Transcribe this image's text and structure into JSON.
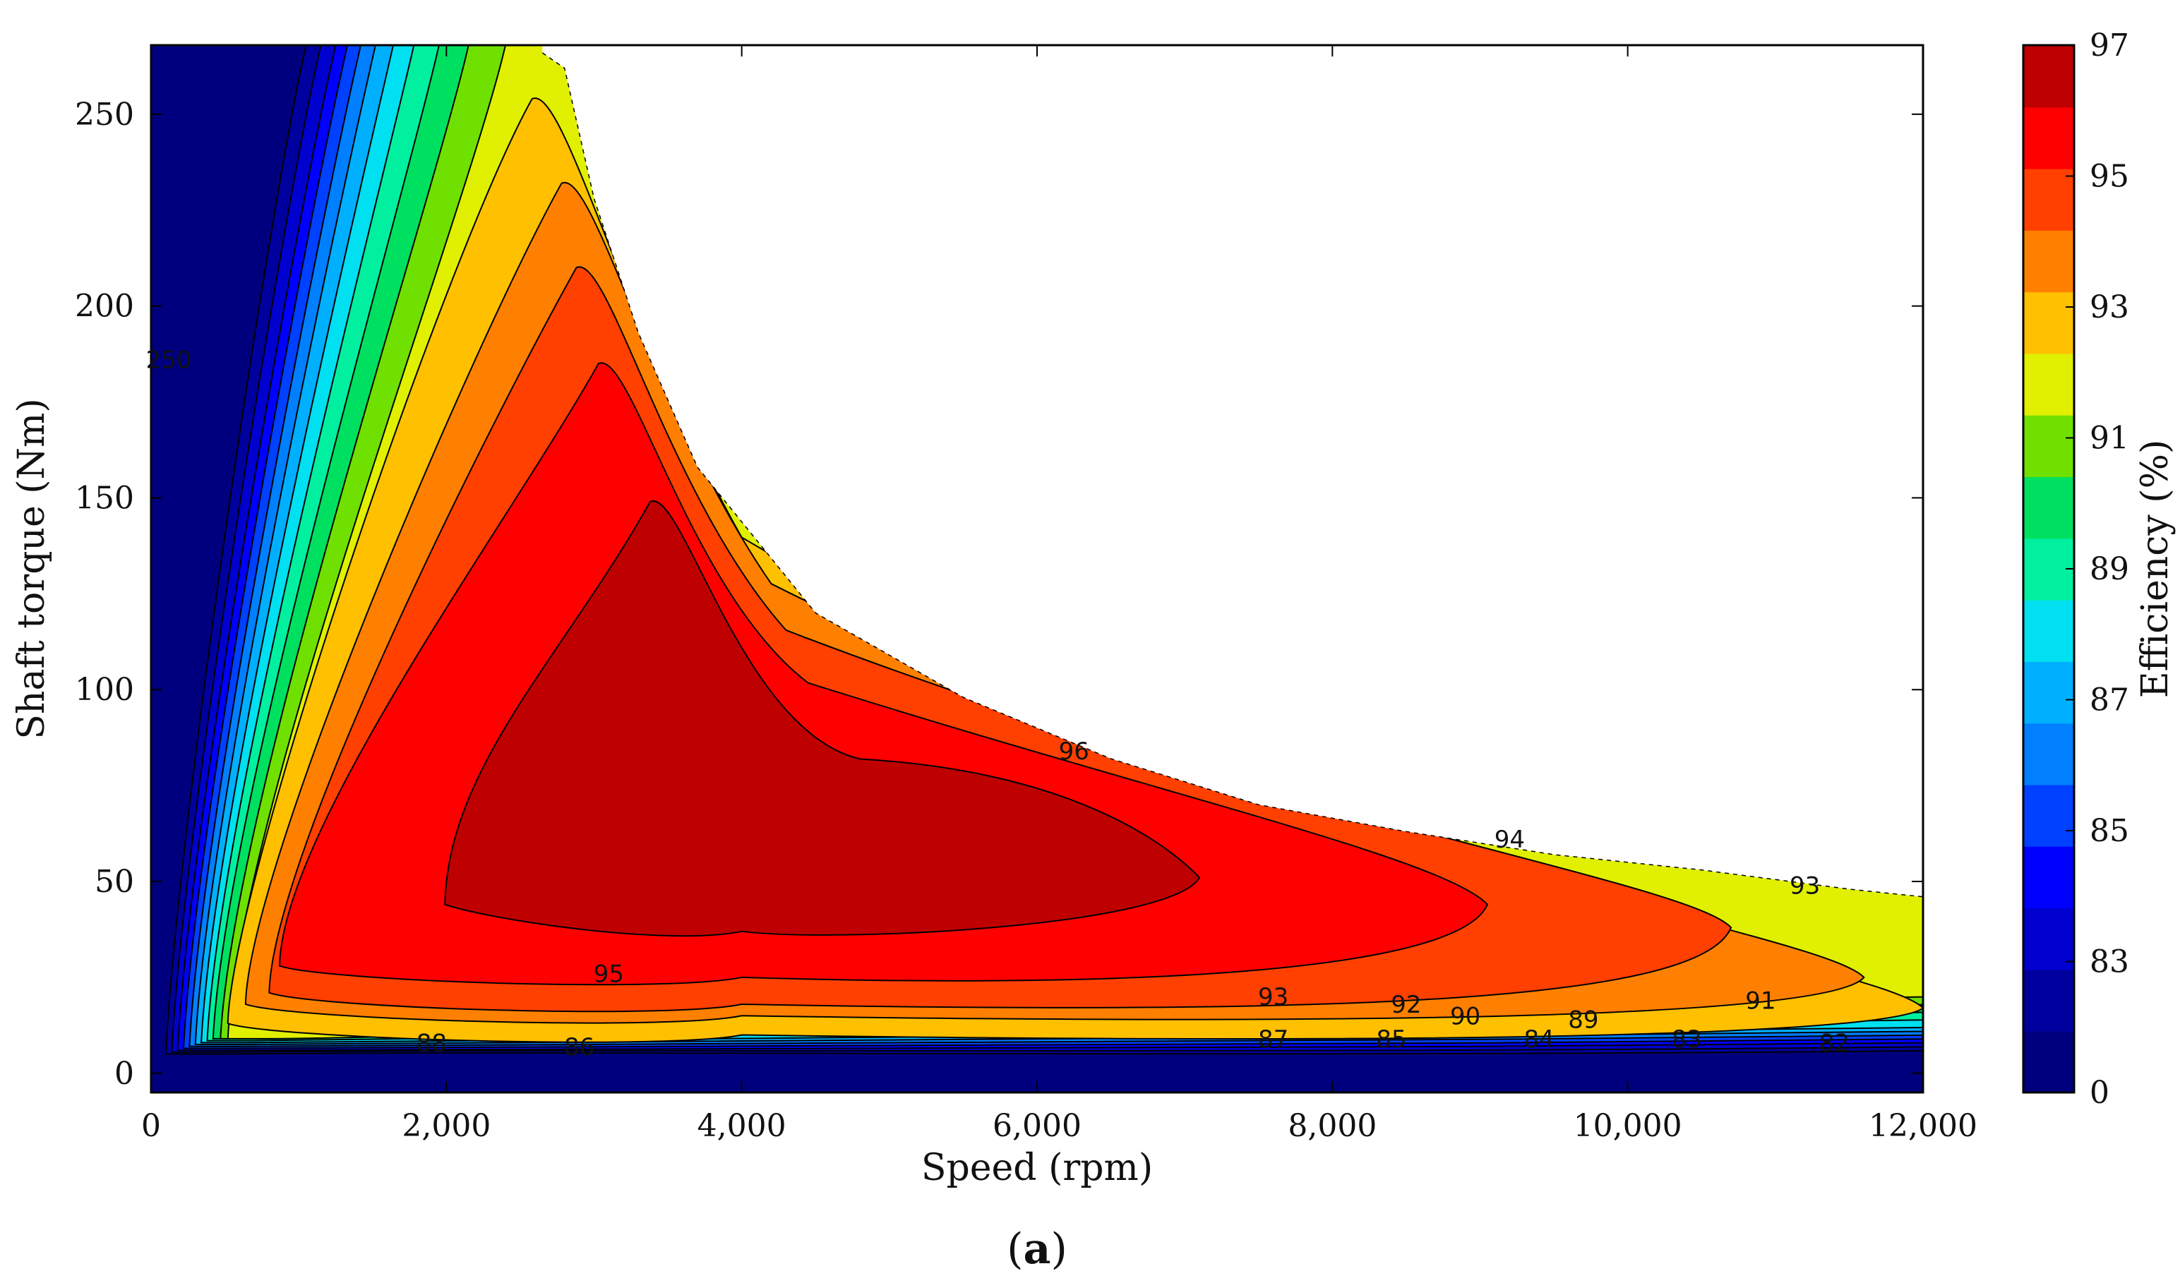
{
  "chart_data": {
    "type": "heatmap",
    "subtype": "filled-contour efficiency map",
    "title": "",
    "panel_label": {
      "open": "(",
      "letter": "a",
      "close": ")"
    },
    "xlabel": "Speed (rpm)",
    "ylabel": "Shaft torque (Nm)",
    "colorbar_label": "Efficiency (%)",
    "xlim": [
      0,
      12000
    ],
    "ylim": [
      -5,
      268
    ],
    "x_ticks": [
      0,
      2000,
      4000,
      6000,
      8000,
      10000,
      12000
    ],
    "x_tick_labels": [
      "0",
      "2,000",
      "4,000",
      "6,000",
      "8,000",
      "10,000",
      "12,000"
    ],
    "y_ticks": [
      0,
      50,
      100,
      150,
      200,
      250
    ],
    "y_tick_labels": [
      "0",
      "50",
      "100",
      "150",
      "200",
      "250"
    ],
    "colorbar_tick_labels": [
      "0",
      "83",
      "85",
      "87",
      "89",
      "91",
      "93",
      "95",
      "97"
    ],
    "efficiency_levels": [
      {
        "level": 0,
        "color": "#00007f"
      },
      {
        "level": 82,
        "color": "#00009f"
      },
      {
        "level": 83,
        "color": "#0000cf"
      },
      {
        "level": 84,
        "color": "#0000ff"
      },
      {
        "level": 85,
        "color": "#0040ff"
      },
      {
        "level": 86,
        "color": "#0080ff"
      },
      {
        "level": 87,
        "color": "#00b0ff"
      },
      {
        "level": 88,
        "color": "#00e0f0"
      },
      {
        "level": 89,
        "color": "#00f0a0"
      },
      {
        "level": 90,
        "color": "#00e060"
      },
      {
        "level": 91,
        "color": "#70e000"
      },
      {
        "level": 92,
        "color": "#e0f000"
      },
      {
        "level": 93,
        "color": "#ffc000"
      },
      {
        "level": 94,
        "color": "#ff8000"
      },
      {
        "level": 95,
        "color": "#ff4000"
      },
      {
        "level": 96,
        "color": "#ff0000"
      },
      {
        "level": 97,
        "color": "#bf0000"
      }
    ],
    "operating_envelope": {
      "max_torque_Nm": 266,
      "base_speed_rpm": 2650,
      "torque_limit_curve": [
        [
          2650,
          266
        ],
        [
          2800,
          262
        ],
        [
          3000,
          228
        ],
        [
          3300,
          193
        ],
        [
          3700,
          158
        ],
        [
          4500,
          120
        ],
        [
          5500,
          98
        ],
        [
          6500,
          82
        ],
        [
          7500,
          70
        ],
        [
          8500,
          63
        ],
        [
          9500,
          57
        ],
        [
          10500,
          53
        ],
        [
          11500,
          48
        ],
        [
          12000,
          46
        ]
      ]
    },
    "peak_efficiency_region": {
      "efficiency": 97,
      "speed_rpm": [
        2000,
        7100
      ],
      "torque_Nm": [
        37,
        149
      ]
    },
    "contour_labels": [
      {
        "text": "250",
        "x": 120,
        "y": 186
      },
      {
        "text": "96",
        "x": 6250,
        "y": 84
      },
      {
        "text": "94",
        "x": 9200,
        "y": 61
      },
      {
        "text": "93",
        "x": 11200,
        "y": 49
      },
      {
        "text": "95",
        "x": 3100,
        "y": 26
      },
      {
        "text": "93",
        "x": 7600,
        "y": 20
      },
      {
        "text": "92",
        "x": 8500,
        "y": 18
      },
      {
        "text": "90",
        "x": 8900,
        "y": 15
      },
      {
        "text": "89",
        "x": 9700,
        "y": 14
      },
      {
        "text": "91",
        "x": 10900,
        "y": 19
      },
      {
        "text": "88",
        "x": 1900,
        "y": 8
      },
      {
        "text": "86",
        "x": 2900,
        "y": 7
      },
      {
        "text": "87",
        "x": 7600,
        "y": 9
      },
      {
        "text": "85",
        "x": 8400,
        "y": 9
      },
      {
        "text": "84",
        "x": 9400,
        "y": 9
      },
      {
        "text": "83",
        "x": 10400,
        "y": 9
      },
      {
        "text": "82",
        "x": 11400,
        "y": 8
      }
    ],
    "regions": [
      {
        "level": 93,
        "ll": [
          520,
          9
        ],
        "apex": [
          2700,
          254
        ],
        "right": [
          12000,
          23
        ],
        "bottom_y": 9
      },
      {
        "level": 94,
        "ll": [
          640,
          14
        ],
        "apex": [
          2900,
          232
        ],
        "right": [
          11600,
          31
        ],
        "bottom_y": 14
      },
      {
        "level": 95,
        "ll": [
          800,
          17
        ],
        "apex": [
          3000,
          210
        ],
        "right": [
          10700,
          44
        ],
        "bottom_y": 17
      },
      {
        "level": 96,
        "ll": [
          870,
          24
        ],
        "apex": [
          3150,
          185
        ],
        "right": [
          9050,
          50
        ],
        "bottom_y": 24
      },
      {
        "level": 97,
        "ll": [
          1990,
          40
        ],
        "apex": [
          3500,
          149
        ],
        "right": [
          7100,
          57
        ],
        "bottom_y": 36
      }
    ]
  }
}
